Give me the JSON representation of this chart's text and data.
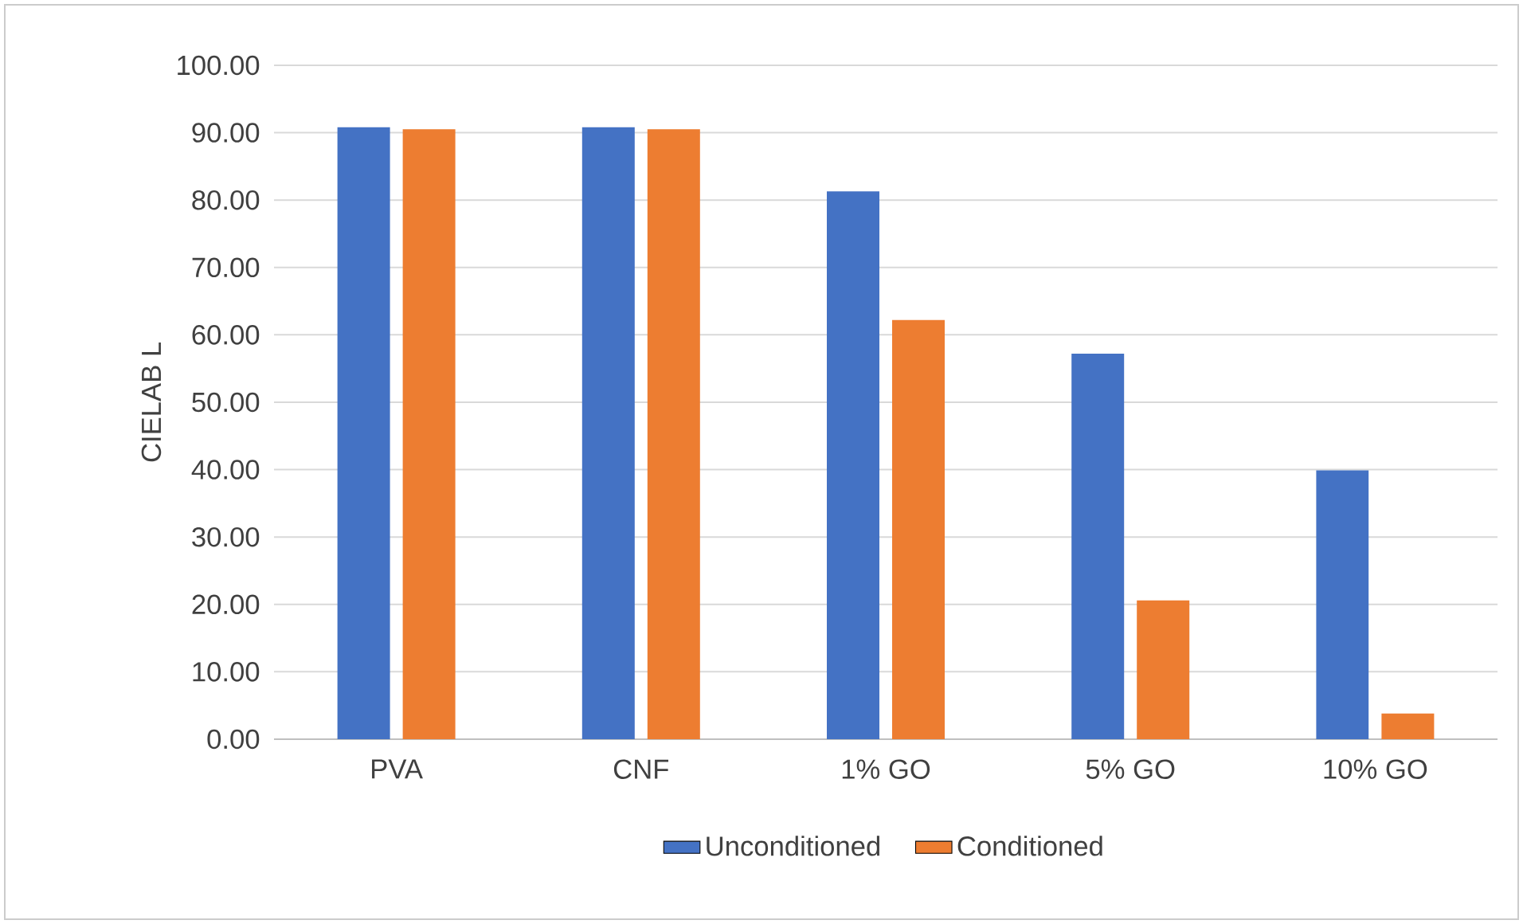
{
  "chart_data": {
    "type": "bar",
    "ylabel": "CIELAB L",
    "categories": [
      "PVA",
      "CNF",
      "1% GO",
      "5% GO",
      "10% GO"
    ],
    "series": [
      {
        "name": "Unconditioned",
        "color": "#4472c4",
        "values": [
          90.8,
          90.8,
          81.3,
          57.2,
          39.9
        ]
      },
      {
        "name": "Conditioned",
        "color": "#ed7d31",
        "values": [
          90.5,
          90.5,
          62.2,
          20.6,
          3.8
        ]
      }
    ],
    "ylim": [
      0,
      100
    ],
    "yticks": [
      {
        "value": 0,
        "label": "0.00"
      },
      {
        "value": 10,
        "label": "10.00"
      },
      {
        "value": 20,
        "label": "20.00"
      },
      {
        "value": 30,
        "label": "30.00"
      },
      {
        "value": 40,
        "label": "40.00"
      },
      {
        "value": 50,
        "label": "50.00"
      },
      {
        "value": 60,
        "label": "60.00"
      },
      {
        "value": 70,
        "label": "70.00"
      },
      {
        "value": 80,
        "label": "80.00"
      },
      {
        "value": 90,
        "label": "90.00"
      },
      {
        "value": 100,
        "label": "100.00"
      }
    ],
    "grid": "y",
    "legend": "bottom"
  }
}
